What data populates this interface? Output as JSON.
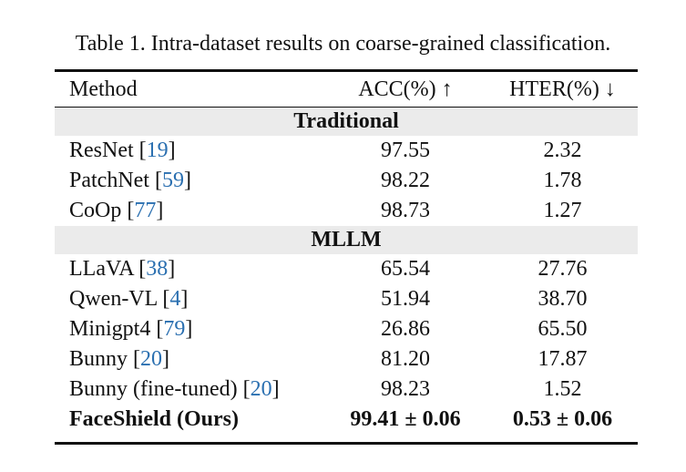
{
  "caption": "Table 1. Intra-dataset results on coarse-grained classification.",
  "headers": {
    "method": "Method",
    "acc": "ACC(%) ↑",
    "hter": "HTER(%) ↓"
  },
  "sections": [
    {
      "title": "Traditional",
      "rows": [
        {
          "name": "ResNet",
          "cite": "19",
          "acc": "97.55",
          "hter": "2.32"
        },
        {
          "name": "PatchNet",
          "cite": "59",
          "acc": "98.22",
          "hter": "1.78"
        },
        {
          "name": "CoOp",
          "cite": "77",
          "acc": "98.73",
          "hter": "1.27"
        }
      ]
    },
    {
      "title": "MLLM",
      "rows": [
        {
          "name": "LLaVA",
          "cite": "38",
          "acc": "65.54",
          "hter": "27.76"
        },
        {
          "name": "Qwen-VL",
          "cite": "4",
          "acc": "51.94",
          "hter": "38.70"
        },
        {
          "name": "Minigpt4",
          "cite": "79",
          "acc": "26.86",
          "hter": "65.50"
        },
        {
          "name": "Bunny",
          "cite": "20",
          "acc": "81.20",
          "hter": "17.87"
        },
        {
          "name": "Bunny (fine-tuned)",
          "cite": "20",
          "acc": "98.23",
          "hter": "1.52"
        },
        {
          "name": "FaceShield (Ours)",
          "cite": "",
          "acc": "99.41 ± 0.06",
          "hter": "0.53 ± 0.06"
        }
      ]
    }
  ]
}
